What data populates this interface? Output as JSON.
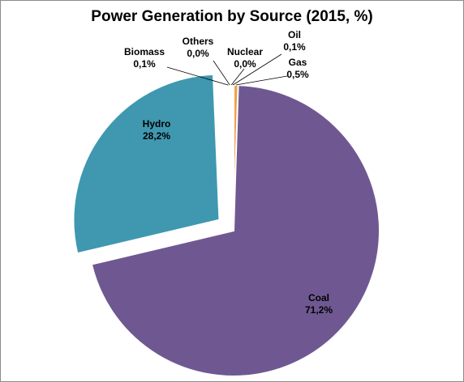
{
  "chart_data": {
    "type": "pie",
    "title": "Power Generation by Source (2015, %)",
    "slices": [
      {
        "name": "Coal",
        "value": 71.2,
        "label": "71,2%",
        "color": "#6f5892"
      },
      {
        "name": "Hydro",
        "value": 28.2,
        "label": "28,2%",
        "color": "#3f98b0",
        "exploded": true
      },
      {
        "name": "Biomass",
        "value": 0.1,
        "label": "0,1%",
        "color": "#7fb241"
      },
      {
        "name": "Others",
        "value": 0.0,
        "label": "0,0%",
        "color": "#4a7cc0"
      },
      {
        "name": "Nuclear",
        "value": 0.0,
        "label": "0,0%",
        "color": "#c0504d"
      },
      {
        "name": "Oil",
        "value": 0.1,
        "label": "0,1%",
        "color": "#9bbb59"
      },
      {
        "name": "Gas",
        "value": 0.5,
        "label": "0,5%",
        "color": "#f2a04a"
      }
    ],
    "slice_border_color": "#ffffff",
    "leader_line_color": "#000000"
  }
}
